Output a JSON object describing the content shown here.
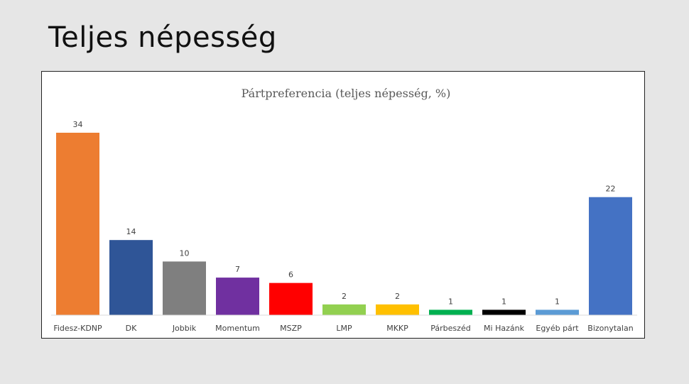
{
  "slide": {
    "title": "Teljes népesség"
  },
  "chart_data": {
    "type": "bar",
    "title": "Pártpreferencia (teljes népesség, %)",
    "categories": [
      "Fidesz-KDNP",
      "DK",
      "Jobbik",
      "Momentum",
      "MSZP",
      "LMP",
      "MKKP",
      "Párbeszéd",
      "Mi Hazánk",
      "Egyéb párt",
      "Bizonytalan"
    ],
    "values": [
      34,
      14,
      10,
      7,
      6,
      2,
      2,
      1,
      1,
      1,
      22
    ],
    "colors": [
      "#ed7d31",
      "#2f5597",
      "#7f7f7f",
      "#7030a0",
      "#ff0000",
      "#92d050",
      "#ffc000",
      "#00b050",
      "#000000",
      "#5b9bd5",
      "#4472c4"
    ],
    "xlabel": "",
    "ylabel": "",
    "ylim": [
      0,
      34
    ],
    "grid": false,
    "legend": "none"
  }
}
